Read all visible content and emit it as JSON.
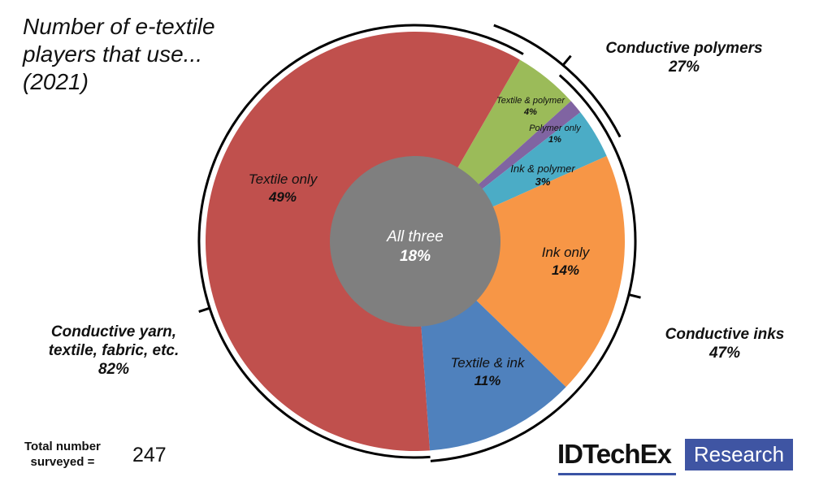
{
  "title": {
    "lines": [
      "Number of e-textile",
      "players that use...",
      "(2021)"
    ]
  },
  "groups": {
    "textile": {
      "label_lines": [
        "Conductive yarn,",
        "textile, fabric, etc."
      ],
      "pct": "82%"
    },
    "polymers": {
      "label": "Conductive polymers",
      "pct": "27%"
    },
    "inks": {
      "label": "Conductive inks",
      "pct": "47%"
    }
  },
  "segments": [
    {
      "key": "textile_polymer",
      "label": "Textile & polymer",
      "pct": "4%",
      "color": "#9bbb59"
    },
    {
      "key": "polymer_only",
      "label": "Polymer only",
      "pct": "1%",
      "color": "#8064a2"
    },
    {
      "key": "ink_polymer",
      "label": "Ink & polymer",
      "pct": "3%",
      "color": "#4bacc6"
    },
    {
      "key": "ink_only",
      "label": "Ink only",
      "pct": "14%",
      "color": "#f79646"
    },
    {
      "key": "textile_ink",
      "label": "Textile & ink",
      "pct": "11%",
      "color": "#4f81bd"
    },
    {
      "key": "textile_only",
      "label": "Textile only",
      "pct": "49%",
      "color": "#c0504d"
    }
  ],
  "center": {
    "label": "All three",
    "pct": "18%",
    "color": "#7f7f7f"
  },
  "footer": {
    "total_label_lines": [
      "Total number",
      "surveyed ="
    ],
    "total_value": "247"
  },
  "logo": {
    "brand": "IDTechEx",
    "badge": "Research",
    "badge_color": "#3f55a3"
  },
  "chart_data": {
    "type": "pie",
    "title": "Number of e-textile players that use... (2021)",
    "categories": [
      "Textile only",
      "Textile & ink",
      "Ink only",
      "Ink & polymer",
      "Polymer only",
      "Textile & polymer",
      "All three"
    ],
    "values": [
      49,
      11,
      14,
      3,
      1,
      4,
      18
    ],
    "units": "%",
    "center_category": "All three",
    "groups": [
      {
        "name": "Conductive yarn, textile, fabric, etc.",
        "value": 82,
        "members": [
          "Textile only",
          "Textile & ink",
          "Textile & polymer",
          "All three"
        ]
      },
      {
        "name": "Conductive polymers",
        "value": 27,
        "members": [
          "Textile & polymer",
          "Polymer only",
          "Ink & polymer",
          "All three"
        ]
      },
      {
        "name": "Conductive inks",
        "value": 47,
        "members": [
          "Ink only",
          "Ink & polymer",
          "Textile & ink",
          "All three"
        ]
      }
    ],
    "total_surveyed": 247,
    "legend": "none (direct labels)"
  }
}
